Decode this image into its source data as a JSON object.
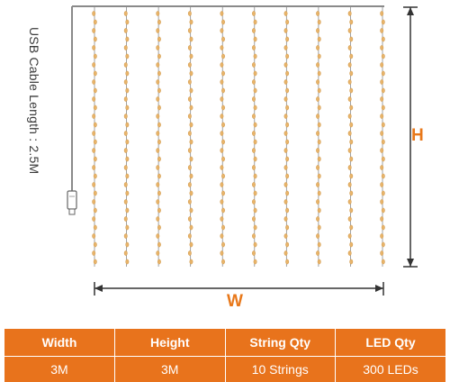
{
  "diagram": {
    "cable_label": "USB Cable Length : 2.5M",
    "height_label": "H",
    "width_label": "W",
    "string_count": 10,
    "colors": {
      "accent": "#e8781a",
      "led": "#e8b46a",
      "wire": "#8a8a8a",
      "table": "#e8731c"
    }
  },
  "spec_table": {
    "headers": [
      "Width",
      "Height",
      "String Qty",
      "LED Qty"
    ],
    "values": [
      "3M",
      "3M",
      "10 Strings",
      "300 LEDs"
    ]
  }
}
